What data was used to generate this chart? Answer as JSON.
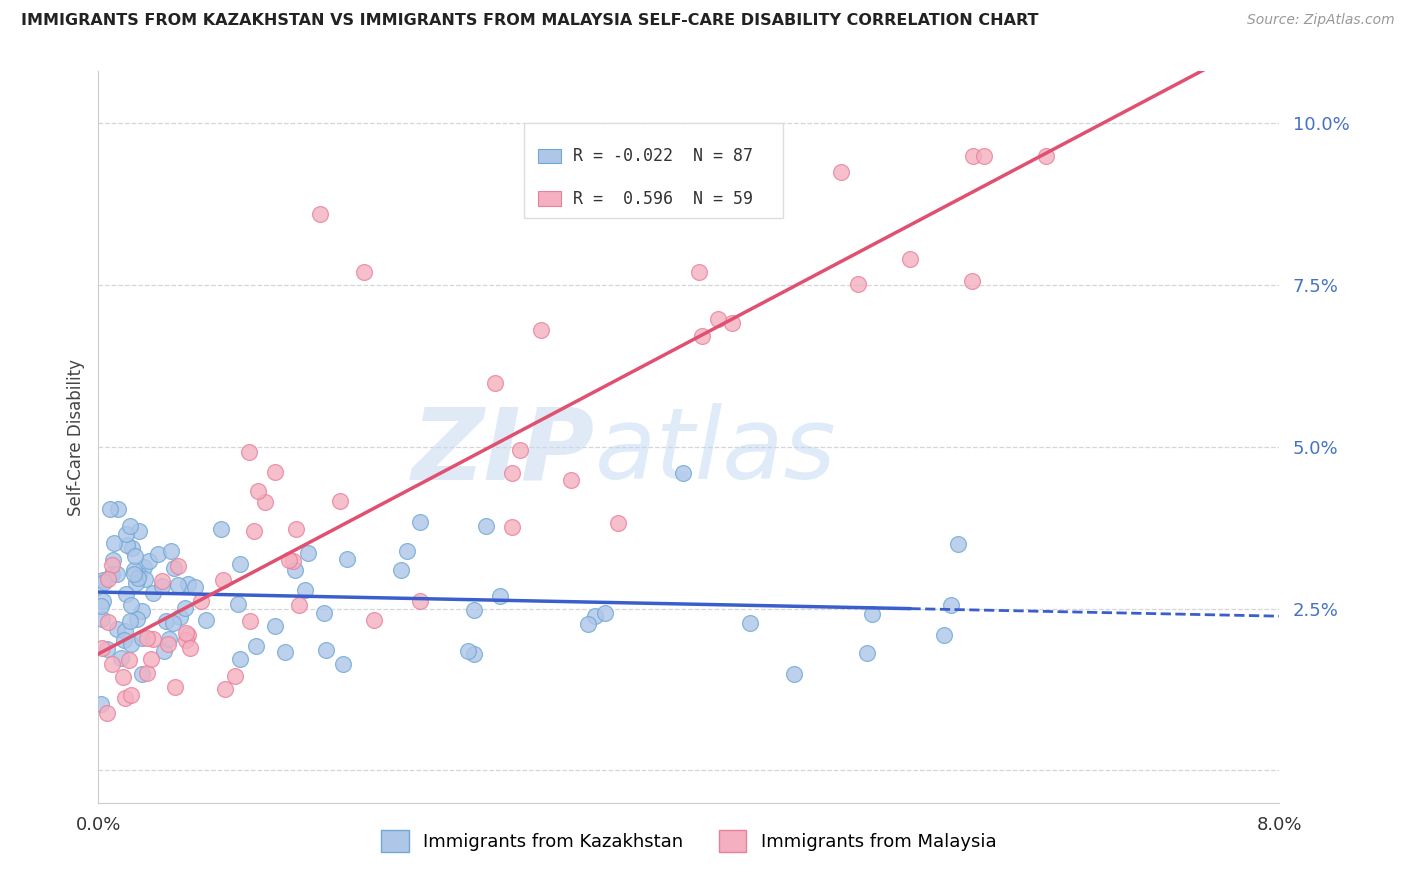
{
  "title": "IMMIGRANTS FROM KAZAKHSTAN VS IMMIGRANTS FROM MALAYSIA SELF-CARE DISABILITY CORRELATION CHART",
  "source": "Source: ZipAtlas.com",
  "ylabel": "Self-Care Disability",
  "yticks": [
    0.0,
    0.025,
    0.05,
    0.075,
    0.1
  ],
  "ytick_labels": [
    "",
    "2.5%",
    "5.0%",
    "7.5%",
    "10.0%"
  ],
  "xlim": [
    0.0,
    0.08
  ],
  "ylim": [
    -0.005,
    0.108
  ],
  "legend_R1": "-0.022",
  "legend_N1": "87",
  "legend_R2": "0.596",
  "legend_N2": "59",
  "kaz_color": "#aec6e8",
  "mal_color": "#f4afc0",
  "kaz_edge": "#6fa8d4",
  "mal_edge": "#e8809a",
  "reg_line_kaz": "#3a5fcd",
  "reg_line_mal": "#e05070",
  "watermark_zip": "ZIP",
  "watermark_atlas": "atlas",
  "background_color": "#ffffff"
}
